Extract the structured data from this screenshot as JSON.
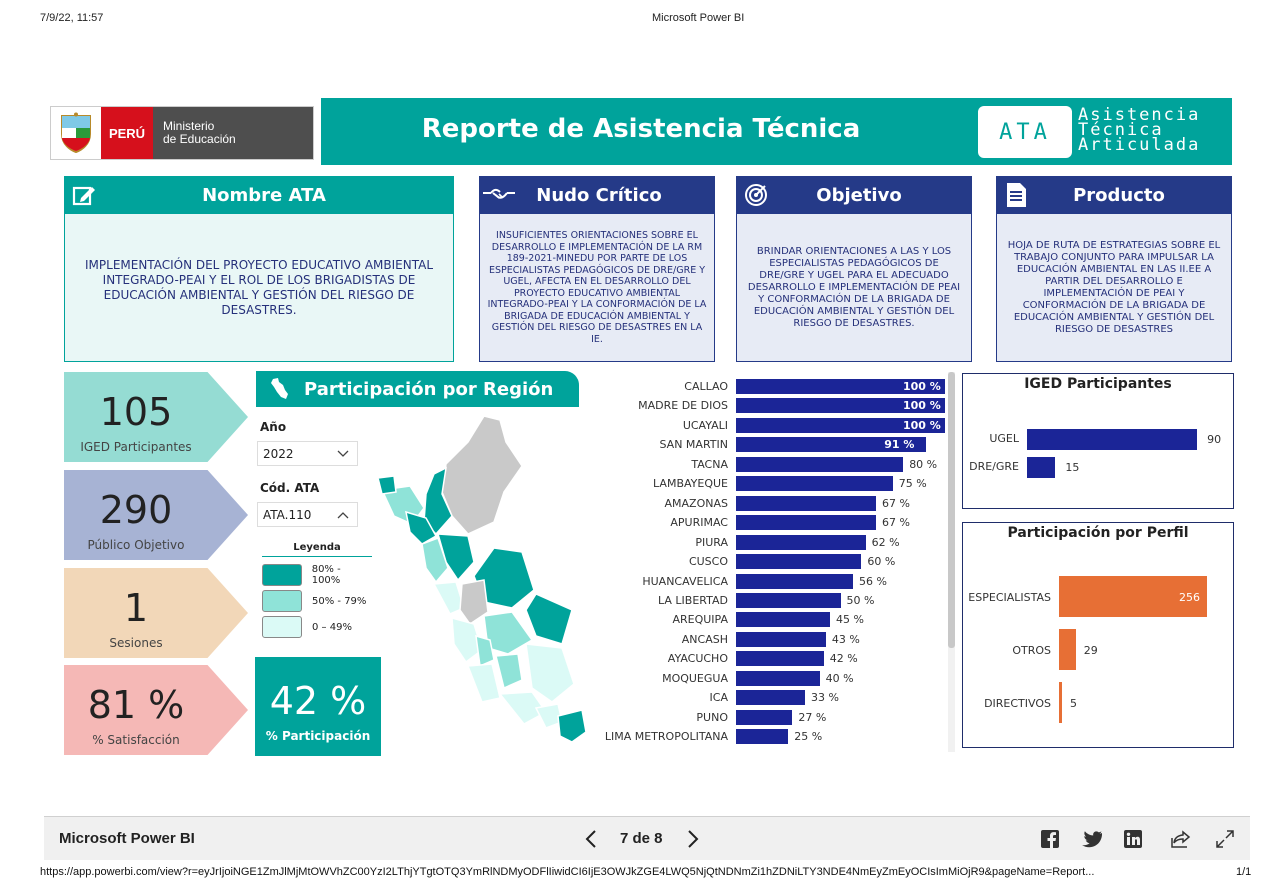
{
  "print_header": {
    "datetime": "7/9/22, 11:57",
    "center_title": "Microsoft Power BI"
  },
  "logo": {
    "peru": "PERÚ",
    "ministry_line1": "Ministerio",
    "ministry_line2": "de Educación"
  },
  "banner": {
    "title": "Reporte de Asistencia Técnica",
    "ata_abbr": "ATA",
    "ata_line1": "Asistencia",
    "ata_line2": "Técnica",
    "ata_line3": "Articulada"
  },
  "cards": {
    "nombre": {
      "title": "Nombre ATA",
      "body": "IMPLEMENTACIÓN DEL PROYECTO EDUCATIVO AMBIENTAL INTEGRADO-PEAI Y EL ROL DE LOS BRIGADISTAS DE EDUCACIÓN AMBIENTAL Y GESTIÓN DEL RIESGO DE DESASTRES."
    },
    "nudo": {
      "title": "Nudo Crítico",
      "body": "INSUFICIENTES ORIENTACIONES SOBRE EL DESARROLLO E IMPLEMENTACIÓN DE LA RM 189-2021-MINEDU POR PARTE DE LOS ESPECIALISTAS PEDAGÓGICOS DE DRE/GRE Y UGEL, AFECTA EN EL DESARROLLO DEL PROYECTO EDUCATIVO AMBIENTAL INTEGRADO-PEAI Y LA CONFORMACIÓN DE LA BRIGADA DE EDUCACIÓN AMBIENTAL Y GESTIÓN DEL RIESGO DE DESASTRES EN LA IE."
    },
    "objetivo": {
      "title": "Objetivo",
      "body": "BRINDAR ORIENTACIONES A LAS Y LOS ESPECIALISTAS PEDAGÓGICOS DE DRE/GRE Y UGEL PARA EL ADECUADO DESARROLLO E IMPLEMENTACIÓN DE PEAI Y CONFORMACIÓN DE LA BRIGADA DE EDUCACIÓN AMBIENTAL Y GESTIÓN DEL RIESGO DE DESASTRES."
    },
    "producto": {
      "title": "Producto",
      "body": "HOJA DE RUTA DE ESTRATEGIAS SOBRE EL TRABAJO CONJUNTO PARA IMPULSAR LA EDUCACIÓN AMBIENTAL EN LAS II.EE A PARTIR DEL DESARROLLO E IMPLEMENTACIÓN DE PEAI Y CONFORMACIÓN DE LA BRIGADA DE EDUCACIÓN AMBIENTAL Y GESTIÓN DEL RIESGO DE DESASTRES"
    }
  },
  "kpis": [
    {
      "value": "105",
      "label": "IGED Participantes",
      "color": "#95dcd3"
    },
    {
      "value": "290",
      "label": "Público Objetivo",
      "color": "#a7b3d4"
    },
    {
      "value": "1",
      "label": "Sesiones",
      "color": "#f2d7b8"
    },
    {
      "value": "81 %",
      "label": "% Satisfacción",
      "color": "#f5b8b6"
    }
  ],
  "participation": {
    "value": "42 %",
    "label": "% Participación"
  },
  "region": {
    "title": "Participación por Región",
    "year_label": "Año",
    "year_value": "2022",
    "code_label": "Cód. ATA",
    "code_value": "ATA.110",
    "legend_title": "Leyenda",
    "legend": [
      {
        "label": "80% - 100%",
        "color": "#00a39b"
      },
      {
        "label": "50% - 79%",
        "color": "#8fe3d8"
      },
      {
        "label": "0 – 49%",
        "color": "#dbfaf6"
      }
    ]
  },
  "chart_data": [
    {
      "type": "bar",
      "orientation": "horizontal",
      "categories": [
        "CALLAO",
        "MADRE DE DIOS",
        "UCAYALI",
        "SAN MARTIN",
        "TACNA",
        "LAMBAYEQUE",
        "AMAZONAS",
        "APURIMAC",
        "PIURA",
        "CUSCO",
        "HUANCAVELICA",
        "LA LIBERTAD",
        "AREQUIPA",
        "ANCASH",
        "AYACUCHO",
        "MOQUEGUA",
        "ICA",
        "PUNO",
        "LIMA METROPOLITANA"
      ],
      "values": [
        100,
        100,
        100,
        91,
        80,
        75,
        67,
        67,
        62,
        60,
        56,
        50,
        45,
        43,
        42,
        40,
        33,
        27,
        25
      ],
      "value_suffix": " %",
      "xlim": [
        0,
        100
      ],
      "color": "#1b2597"
    },
    {
      "type": "bar",
      "orientation": "horizontal",
      "title": "IGED Participantes",
      "categories": [
        "UGEL",
        "DRE/GRE"
      ],
      "values": [
        90,
        15
      ],
      "xlim": [
        0,
        100
      ],
      "color": "#1b2597"
    },
    {
      "type": "bar",
      "orientation": "horizontal",
      "title": "Participación por Perfil",
      "categories": [
        "ESPECIALISTAS",
        "OTROS",
        "DIRECTIVOS"
      ],
      "values": [
        256,
        29,
        5
      ],
      "xlim": [
        0,
        256
      ],
      "color": "#e76f35"
    }
  ],
  "footer": {
    "app_name": "Microsoft Power BI",
    "page_indicator": "7 de 8",
    "url": "https://app.powerbi.com/view?r=eyJrIjoiNGE1ZmJlMjMtOWVhZC00YzI2LThjYTgtOTQ3YmRlNDMyODFlIiwidCI6IjE3OWJkZGE4LWQ5NjQtNDNmZi1hZDNiLTY3NDE4NmEyZmEyOCIsImMiOjR9&pageName=Report...",
    "print_page": "1/1"
  }
}
